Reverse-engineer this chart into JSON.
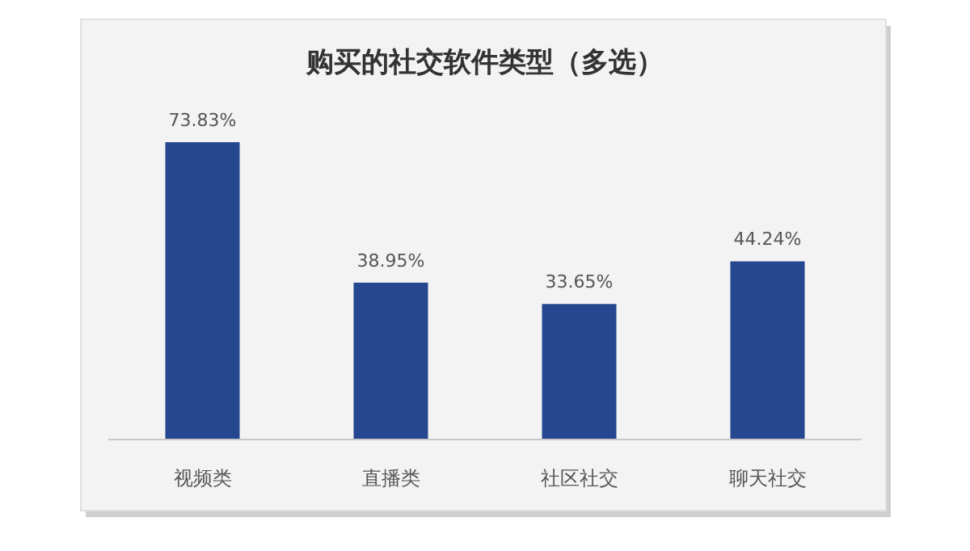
{
  "chart_data": {
    "type": "bar",
    "title": "购买的社交软件类型（多选）",
    "categories": [
      "视频类",
      "直播类",
      "社区社交",
      "聊天社交"
    ],
    "values": [
      73.83,
      38.95,
      33.65,
      44.24
    ],
    "value_labels": [
      "73.83%",
      "38.95%",
      "33.65%",
      "44.24%"
    ],
    "color": "#25478f"
  }
}
